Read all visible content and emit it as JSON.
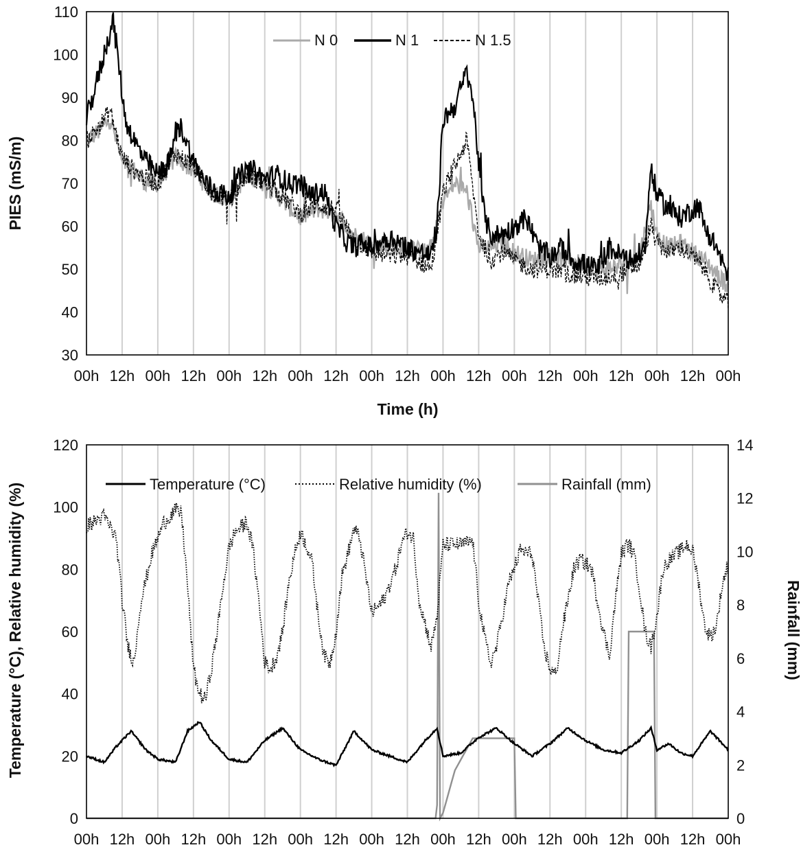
{
  "chart_data": [
    {
      "type": "line",
      "title": "",
      "xlabel": "Time (h)",
      "ylabel": "PIES (mS/m)",
      "ylim": [
        30,
        110
      ],
      "yticks": [
        30,
        40,
        50,
        60,
        70,
        80,
        90,
        100,
        110
      ],
      "xlim": [
        0,
        216
      ],
      "xtick_labels": [
        "00h",
        "12h",
        "00h",
        "12h",
        "00h",
        "12h",
        "00h",
        "12h",
        "00h",
        "12h",
        "00h",
        "12h",
        "00h",
        "12h",
        "00h",
        "12h",
        "00h",
        "12h",
        "00h"
      ],
      "grid": "vertical",
      "legend_position": "top-center",
      "series": [
        {
          "name": "N 0",
          "color": "#aaaaaa",
          "style": "solid",
          "x": [
            0,
            4,
            8,
            12,
            16,
            20,
            24,
            30,
            36,
            42,
            48,
            54,
            60,
            66,
            72,
            78,
            84,
            90,
            96,
            102,
            108,
            114,
            116,
            118,
            120,
            124,
            128,
            132,
            136,
            140,
            144,
            150,
            156,
            162,
            168,
            174,
            180,
            186,
            190,
            192,
            196,
            200,
            204,
            208,
            212,
            216
          ],
          "y": [
            80,
            82,
            85,
            75,
            73,
            70,
            70,
            76,
            73,
            68,
            66,
            72,
            70,
            66,
            62,
            64,
            63,
            58,
            56,
            55,
            55,
            54,
            55,
            60,
            66,
            70,
            68,
            55,
            55,
            56,
            54,
            52,
            53,
            52,
            51,
            50,
            51,
            53,
            65,
            58,
            55,
            56,
            54,
            52,
            49,
            46
          ]
        },
        {
          "name": "N 1",
          "color": "#000000",
          "style": "solid",
          "x": [
            0,
            4,
            7,
            9,
            11,
            13,
            16,
            20,
            24,
            28,
            30,
            32,
            36,
            40,
            44,
            48,
            52,
            56,
            60,
            64,
            68,
            72,
            76,
            78,
            80,
            84,
            88,
            90,
            92,
            96,
            100,
            104,
            108,
            112,
            116,
            118,
            120,
            124,
            128,
            130,
            132,
            134,
            136,
            140,
            144,
            148,
            152,
            156,
            160,
            164,
            168,
            172,
            176,
            180,
            184,
            188,
            190,
            192,
            196,
            200,
            204,
            206,
            208,
            212,
            216
          ],
          "y": [
            85,
            95,
            103,
            108,
            97,
            85,
            80,
            75,
            72,
            75,
            82,
            83,
            75,
            70,
            68,
            67,
            72,
            73,
            71,
            72,
            70,
            70,
            67,
            68,
            68,
            60,
            56,
            55,
            56,
            55,
            57,
            57,
            55,
            54,
            53,
            60,
            85,
            88,
            96,
            90,
            75,
            62,
            58,
            58,
            60,
            62,
            55,
            53,
            55,
            52,
            51,
            50,
            55,
            53,
            52,
            55,
            74,
            67,
            64,
            62,
            64,
            65,
            60,
            55,
            48
          ]
        },
        {
          "name": "N 1.5",
          "color": "#000000",
          "style": "dashed",
          "x": [
            0,
            4,
            8,
            12,
            16,
            20,
            24,
            30,
            36,
            42,
            48,
            54,
            60,
            66,
            72,
            78,
            84,
            90,
            96,
            102,
            108,
            114,
            116,
            118,
            120,
            124,
            128,
            132,
            136,
            140,
            144,
            150,
            156,
            162,
            168,
            174,
            180,
            186,
            190,
            192,
            196,
            200,
            204,
            208,
            212,
            216
          ],
          "y": [
            80,
            83,
            87,
            76,
            73,
            71,
            70,
            77,
            74,
            68,
            66,
            72,
            70,
            67,
            63,
            65,
            64,
            57,
            54,
            53,
            53,
            51,
            50,
            58,
            68,
            74,
            80,
            58,
            52,
            54,
            52,
            50,
            50,
            49,
            48,
            48,
            49,
            51,
            60,
            56,
            54,
            55,
            53,
            50,
            45,
            42
          ]
        }
      ]
    },
    {
      "type": "line",
      "title": "",
      "xlabel": "",
      "ylabel": "Temperature (°C), Relative humidity (%)",
      "y2label": "Rainfall (mm)",
      "ylim": [
        0,
        120
      ],
      "yticks": [
        0,
        20,
        40,
        60,
        80,
        100,
        120
      ],
      "y2lim": [
        0,
        14
      ],
      "y2ticks": [
        0,
        2,
        4,
        6,
        8,
        10,
        12,
        14
      ],
      "xlim": [
        0,
        216
      ],
      "xtick_labels": [
        "00h",
        "12h",
        "00h",
        "12h",
        "00h",
        "12h",
        "00h",
        "12h",
        "00h",
        "12h",
        "00h",
        "12h",
        "00h",
        "12h",
        "00h",
        "12h",
        "00h",
        "12h",
        "00h"
      ],
      "grid": "vertical",
      "legend_position": "top",
      "series": [
        {
          "name": "Temperature (°C)",
          "color": "#000000",
          "style": "solid",
          "axis": "left",
          "x": [
            0,
            6,
            10,
            15,
            20,
            24,
            30,
            34,
            38,
            42,
            48,
            54,
            60,
            66,
            72,
            78,
            84,
            90,
            96,
            102,
            108,
            114,
            118,
            120,
            126,
            132,
            138,
            144,
            150,
            156,
            162,
            168,
            174,
            180,
            186,
            190,
            192,
            196,
            200,
            204,
            210,
            216
          ],
          "y": [
            20,
            18,
            23,
            28,
            22,
            19,
            18,
            28,
            31,
            25,
            19,
            18,
            25,
            29,
            22,
            19,
            17,
            28,
            22,
            20,
            18,
            25,
            29,
            20,
            21,
            26,
            29,
            24,
            20,
            24,
            29,
            25,
            22,
            21,
            25,
            29,
            22,
            24,
            21,
            20,
            28,
            22
          ]
        },
        {
          "name": "Relative humidity (%)",
          "color": "#000000",
          "style": "dotted",
          "axis": "left",
          "x": [
            0,
            6,
            10,
            12,
            14,
            16,
            18,
            22,
            26,
            30,
            32,
            34,
            36,
            38,
            40,
            42,
            44,
            46,
            48,
            50,
            54,
            56,
            58,
            60,
            62,
            64,
            66,
            68,
            70,
            72,
            74,
            76,
            78,
            80,
            82,
            84,
            86,
            88,
            90,
            92,
            96,
            100,
            102,
            104,
            106,
            108,
            110,
            112,
            116,
            118,
            120,
            126,
            130,
            132,
            134,
            136,
            138,
            140,
            142,
            146,
            150,
            152,
            154,
            156,
            158,
            160,
            162,
            164,
            166,
            168,
            170,
            172,
            174,
            176,
            178,
            180,
            182,
            184,
            186,
            188,
            190,
            192,
            194,
            196,
            200,
            202,
            204,
            206,
            208,
            210,
            212,
            214,
            216
          ],
          "y": [
            94,
            97,
            90,
            70,
            55,
            50,
            68,
            85,
            95,
            99,
            98,
            75,
            48,
            40,
            38,
            48,
            60,
            75,
            87,
            92,
            95,
            87,
            70,
            50,
            48,
            52,
            60,
            75,
            85,
            92,
            88,
            82,
            65,
            52,
            50,
            60,
            78,
            85,
            93,
            90,
            66,
            70,
            75,
            80,
            88,
            92,
            90,
            70,
            55,
            65,
            88,
            88,
            89,
            70,
            58,
            50,
            55,
            65,
            75,
            86,
            85,
            70,
            55,
            48,
            46,
            60,
            70,
            80,
            83,
            82,
            80,
            70,
            60,
            52,
            70,
            85,
            88,
            86,
            75,
            60,
            55,
            65,
            80,
            83,
            86,
            88,
            86,
            76,
            62,
            58,
            62,
            75,
            82
          ]
        },
        {
          "name": "Rainfall (mm)",
          "color": "#909090",
          "style": "solid",
          "axis": "right",
          "x": [
            0,
            117.5,
            118,
            118.5,
            119,
            120,
            121,
            122,
            123,
            124,
            125,
            126,
            127,
            128,
            129,
            130,
            131,
            132,
            144,
            144.5,
            182,
            182.5,
            191,
            191.5,
            216
          ],
          "y": [
            0,
            0,
            0.5,
            12.2,
            0,
            0.2,
            0.6,
            1.0,
            1.4,
            1.8,
            2.0,
            2.2,
            2.4,
            2.6,
            2.8,
            3.0,
            3.0,
            3.0,
            3.0,
            0,
            0,
            7.0,
            7.0,
            0,
            0
          ]
        }
      ]
    }
  ]
}
